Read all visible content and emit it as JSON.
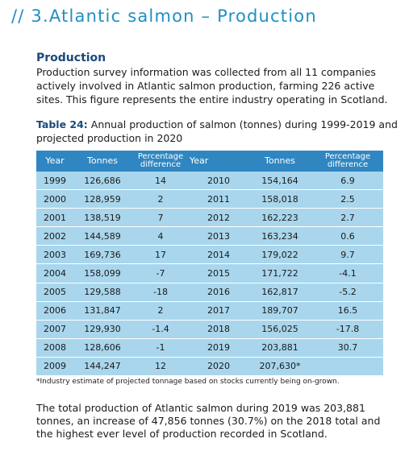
{
  "section_title": "// 3.Atlantic salmon – Production",
  "heading": "Production",
  "intro": "Production survey information was collected from all 11 companies actively involved in Atlantic salmon production, farming 226 active sites. This figure represents the entire industry operating in Scotland.",
  "caption": {
    "label": "Table 24:",
    "text": " Annual production of salmon (tonnes) during 1999-2019 and projected production in 2020"
  },
  "table": {
    "headers": [
      "Year",
      "Tonnes",
      "Percentage difference",
      "Year",
      "Tonnes",
      "Percentage difference"
    ],
    "rows": [
      [
        "1999",
        "126,686",
        "14",
        "2010",
        "154,164",
        "6.9"
      ],
      [
        "2000",
        "128,959",
        "2",
        "2011",
        "158,018",
        "2.5"
      ],
      [
        "2001",
        "138,519",
        "7",
        "2012",
        "162,223",
        "2.7"
      ],
      [
        "2002",
        "144,589",
        "4",
        "2013",
        "163,234",
        "0.6"
      ],
      [
        "2003",
        "169,736",
        "17",
        "2014",
        "179,022",
        "9.7"
      ],
      [
        "2004",
        "158,099",
        "-7",
        "2015",
        "171,722",
        "-4.1"
      ],
      [
        "2005",
        "129,588",
        "-18",
        "2016",
        "162,817",
        "-5.2"
      ],
      [
        "2006",
        "131,847",
        "2",
        "2017",
        "189,707",
        "16.5"
      ],
      [
        "2007",
        "129,930",
        "-1.4",
        "2018",
        "156,025",
        "-17.8"
      ],
      [
        "2008",
        "128,606",
        "-1",
        "2019",
        "203,881",
        "30.7"
      ],
      [
        "2009",
        "144,247",
        "12",
        "2020",
        "207,630*",
        ""
      ]
    ]
  },
  "footnote": "*Industry estimate of projected tonnage based on stocks currently being on-grown.",
  "summary": "The total production of Atlantic salmon during 2019 was 203,881 tonnes, an increase of 47,856 tonnes (30.7%) on the 2018 total and the highest ever level of production recorded in Scotland."
}
